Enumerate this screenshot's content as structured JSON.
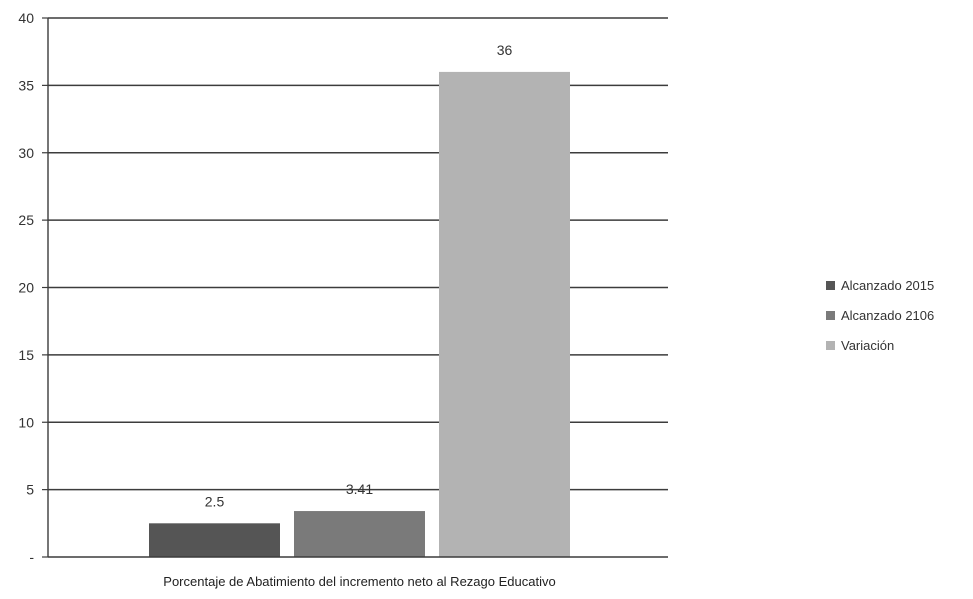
{
  "chart_data": {
    "type": "bar",
    "title": "",
    "xlabel": "",
    "ylabel": "",
    "categories": [
      "Porcentaje de Abatimiento del incremento neto al Rezago Educativo"
    ],
    "series": [
      {
        "name": "Alcanzado 2015",
        "values": [
          2.5
        ],
        "label": "2.5",
        "color": "#555555"
      },
      {
        "name": "Alcanzado 2106",
        "values": [
          3.41
        ],
        "label": "3.41",
        "color": "#7a7a7a"
      },
      {
        "name": "Variación",
        "values": [
          36
        ],
        "label": "36",
        "color": "#b3b3b3"
      }
    ],
    "ylim": [
      0,
      40
    ],
    "yticks": [
      {
        "value": 0,
        "label": "-"
      },
      {
        "value": 5,
        "label": "5"
      },
      {
        "value": 10,
        "label": "10"
      },
      {
        "value": 15,
        "label": "15"
      },
      {
        "value": 20,
        "label": "20"
      },
      {
        "value": 25,
        "label": "25"
      },
      {
        "value": 30,
        "label": "30"
      },
      {
        "value": 35,
        "label": "35"
      },
      {
        "value": 40,
        "label": "40"
      }
    ],
    "grid": true,
    "legend_position": "right"
  }
}
